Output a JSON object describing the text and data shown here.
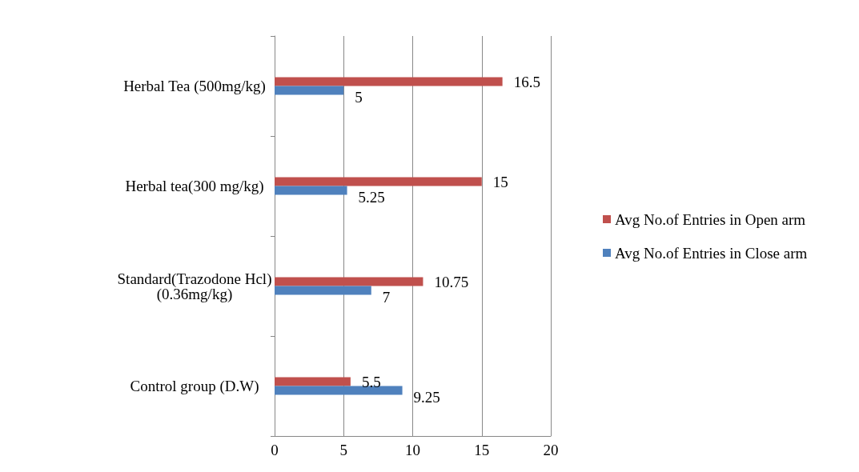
{
  "chart_data": {
    "type": "bar",
    "orientation": "horizontal",
    "categories": [
      "Herbal Tea (500mg/kg)",
      "Herbal tea(300 mg/kg)",
      "Standard(Trazodone Hcl)\n(0.36mg/kg)",
      "Control group (D.W)"
    ],
    "series": [
      {
        "name": "Avg No.of Entries in Open arm",
        "color": "#c0504d",
        "values": [
          16.5,
          15,
          10.75,
          5.5
        ]
      },
      {
        "name": "Avg No.of Entries in Close arm",
        "color": "#4f81bd",
        "values": [
          5,
          5.25,
          7,
          9.25
        ]
      }
    ],
    "xlim": [
      0,
      20
    ],
    "xticks": [
      0,
      5,
      10,
      15,
      20
    ],
    "grid": "x",
    "legend": "right",
    "data_labels": true
  }
}
